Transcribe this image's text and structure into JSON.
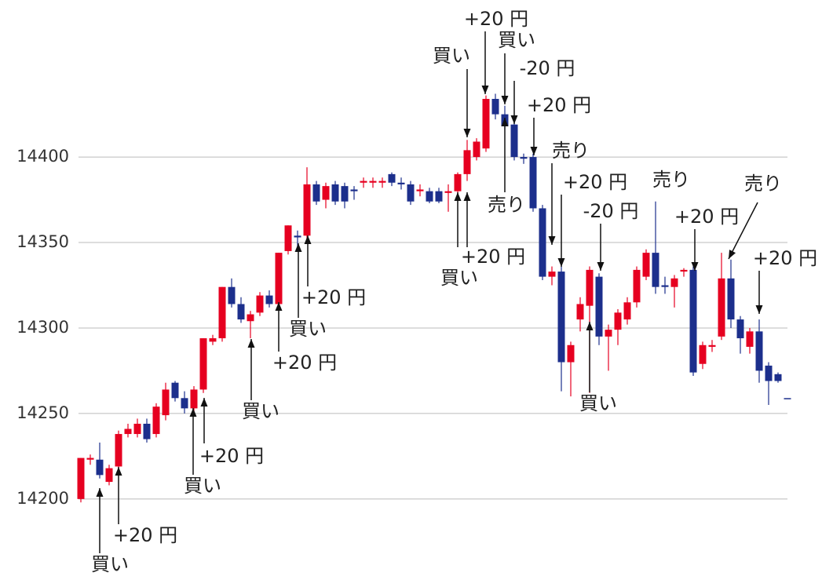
{
  "chart_data": {
    "type": "candlestick",
    "up_color": "#e60020",
    "down_color": "#1c2f8c",
    "ylim": [
      14160,
      14490
    ],
    "yticks": [
      14200,
      14250,
      14300,
      14350,
      14400
    ],
    "grid": true,
    "open": [
      14200,
      14223,
      14223,
      14210,
      14219,
      14238,
      14238,
      14244,
      14238,
      14249,
      14268,
      14259,
      14253,
      14264,
      14292,
      14294,
      14324,
      14314,
      14304,
      14309,
      14319,
      14314,
      14345,
      14354,
      14354,
      14384,
      14375,
      14384,
      14383,
      14381,
      14385,
      14385,
      14385,
      14390,
      14385,
      14384,
      14380,
      14380,
      14380,
      14379,
      14380,
      14390,
      14400,
      14405,
      14434,
      14425,
      14419,
      14400,
      14400,
      14370,
      14330,
      14333,
      14280,
      14305,
      14313,
      14330,
      14295,
      14299,
      14305,
      14315,
      14330,
      14344,
      14325,
      14324,
      14333,
      14334,
      14279,
      14289,
      14295,
      14329,
      14305,
      14289,
      14298,
      14278,
      14273,
      14259
    ],
    "high": [
      14224,
      14226,
      14233,
      14220,
      14240,
      14244,
      14247,
      14247,
      14256,
      14268,
      14269,
      14263,
      14266,
      14294,
      14296,
      14324,
      14329,
      14318,
      14310,
      14321,
      14322,
      14344,
      14360,
      14357,
      14394,
      14386,
      14385,
      14386,
      14385,
      14383,
      14388,
      14388,
      14388,
      14391,
      14388,
      14386,
      14384,
      14382,
      14382,
      14384,
      14391,
      14410,
      14411,
      14436,
      14437,
      14430,
      14422,
      14402,
      14402,
      14372,
      14336,
      14336,
      14292,
      14318,
      14336,
      14332,
      14302,
      14311,
      14318,
      14336,
      14346,
      14374,
      14330,
      14331,
      14335,
      14336,
      14292,
      14293,
      14344,
      14340,
      14307,
      14300,
      14305,
      14280,
      14274,
      14259
    ],
    "low": [
      14198,
      14220,
      14212,
      14208,
      14217,
      14236,
      14236,
      14233,
      14236,
      14246,
      14257,
      14250,
      14250,
      14262,
      14290,
      14292,
      14312,
      14303,
      14294,
      14307,
      14312,
      14310,
      14343,
      14345,
      14352,
      14372,
      14370,
      14372,
      14370,
      14375,
      14382,
      14382,
      14382,
      14383,
      14381,
      14372,
      14377,
      14373,
      14373,
      14368,
      14378,
      14386,
      14398,
      14403,
      14422,
      14416,
      14398,
      14396,
      14368,
      14328,
      14325,
      14263,
      14260,
      14298,
      14262,
      14290,
      14275,
      14290,
      14302,
      14312,
      14328,
      14320,
      14320,
      14312,
      14330,
      14272,
      14276,
      14286,
      14293,
      14300,
      14285,
      14285,
      14268,
      14255,
      14268,
      14259
    ],
    "close": [
      14224,
      14224,
      14214,
      14218,
      14238,
      14241,
      14244,
      14235,
      14254,
      14264,
      14259,
      14253,
      14264,
      14294,
      14294,
      14324,
      14314,
      14305,
      14308,
      14319,
      14314,
      14344,
      14360,
      14353,
      14384,
      14374,
      14383,
      14374,
      14374,
      14380,
      14386,
      14386,
      14386,
      14385,
      14384,
      14374,
      14381,
      14374,
      14374,
      14380,
      14390,
      14404,
      14409,
      14434,
      14425,
      14418,
      14400,
      14399,
      14370,
      14330,
      14333,
      14280,
      14290,
      14314,
      14334,
      14295,
      14299,
      14309,
      14315,
      14334,
      14344,
      14324,
      14324,
      14329,
      14334,
      14274,
      14290,
      14290,
      14329,
      14305,
      14294,
      14298,
      14275,
      14269,
      14269,
      14259
    ],
    "annotations": [
      "買い",
      "+20 円",
      "買い",
      "+20 円",
      "買い",
      "+20 円",
      "買い",
      "+20 円",
      "買い",
      "+20 円",
      "買い",
      "-20 円",
      "+20 円",
      "売り",
      "+20 円",
      "買い",
      "売り",
      "+20 円",
      "-20 円",
      "買い",
      "売り",
      "+20 円",
      "売り",
      "+20 円"
    ]
  }
}
